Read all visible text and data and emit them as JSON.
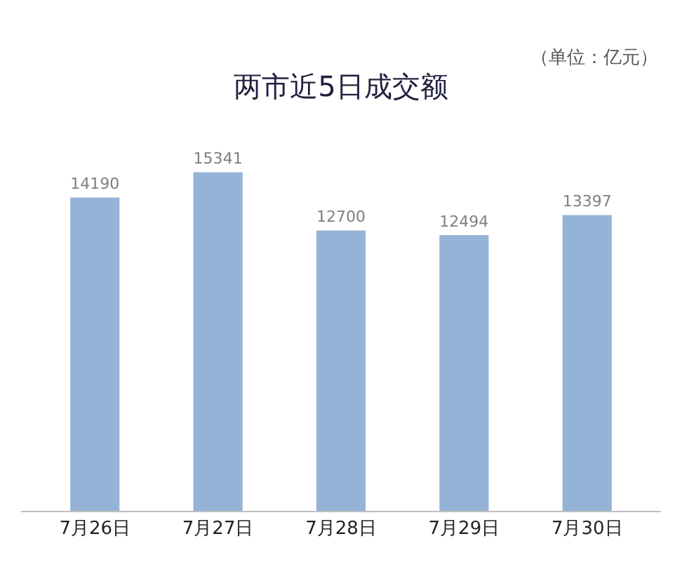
{
  "chart_data": {
    "type": "bar",
    "title": "两市近5日成交额",
    "annotations": [
      "（单位：亿元）"
    ],
    "categories": [
      "7月26日",
      "7月27日",
      "7月28日",
      "7月29日",
      "7月30日"
    ],
    "values": [
      14190,
      15341,
      12700,
      12494,
      13397
    ],
    "color": "#95b3d7",
    "data_labels": true
  }
}
